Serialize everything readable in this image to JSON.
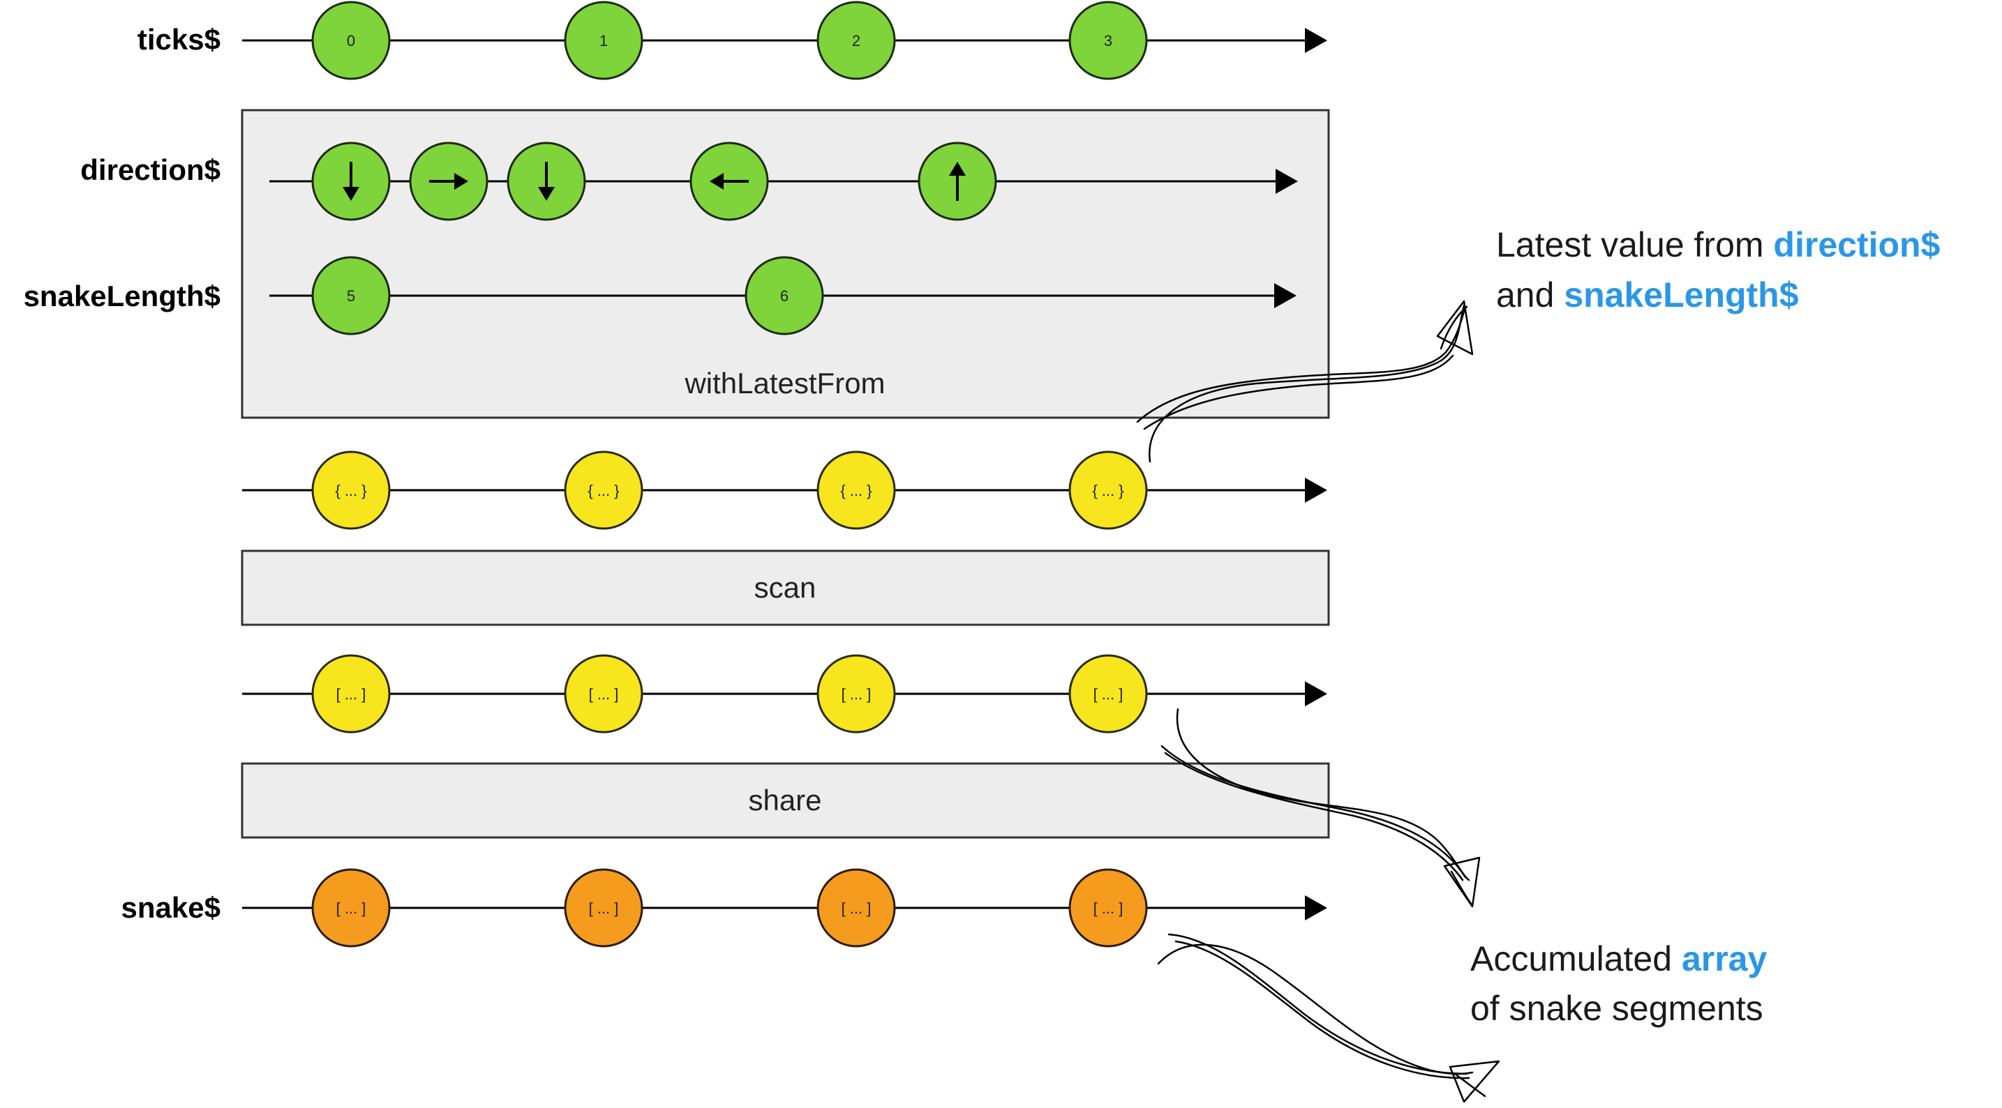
{
  "streams": {
    "ticks": {
      "label": "ticks$",
      "values": [
        "0",
        "1",
        "2",
        "3"
      ]
    },
    "direction": {
      "label": "direction$",
      "arrows": [
        "arrow-down-icon",
        "arrow-right-icon",
        "arrow-down-icon",
        "arrow-left-icon",
        "arrow-up-icon"
      ]
    },
    "snakeLength": {
      "label": "snakeLength$",
      "values": [
        "5",
        "6"
      ]
    },
    "combined": {
      "values": [
        "{ ... }",
        "{ ... }",
        "{ ... }",
        "{ ... }"
      ]
    },
    "scanned": {
      "values": [
        "[ ... ]",
        "[ ... ]",
        "[ ... ]",
        "[ ... ]"
      ]
    },
    "snake": {
      "label": "snake$",
      "values": [
        "[ ... ]",
        "[ ... ]",
        "[ ... ]",
        "[ ... ]"
      ]
    }
  },
  "operators": {
    "withLatestFrom": "withLatestFrom",
    "scan": "scan",
    "share": "share"
  },
  "annotations": {
    "latest": {
      "line1_prefix": "Latest value from ",
      "line1_highlight": "direction$",
      "line2_prefix": "and ",
      "line2_highlight": "snakeLength$"
    },
    "accumulated": {
      "line1_prefix": "Accumulated ",
      "line1_highlight": "array",
      "line2": "of snake segments"
    }
  },
  "colors": {
    "green": "#7ed43a",
    "yellow": "#f7e51d",
    "orange": "#f59b1e",
    "highlight": "#2a97e6",
    "operator_box": "#ededed"
  }
}
